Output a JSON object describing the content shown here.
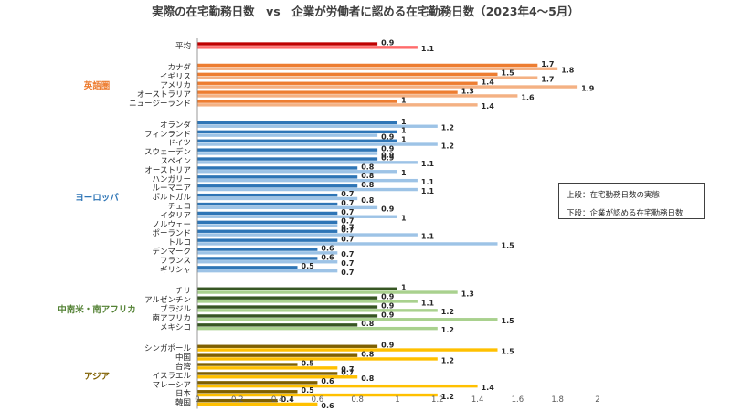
{
  "chart_data": {
    "type": "bar",
    "orientation": "horizontal",
    "title": "実際の在宅勤務日数　vs　企業が労働者に認める在宅勤務日数（2023年4～5月）",
    "xlim": [
      0,
      2
    ],
    "x_ticks": [
      "0",
      "0.2",
      "0.4",
      "0.6",
      "0.8",
      "1",
      "1.2",
      "1.4",
      "1.6",
      "1.8",
      "2"
    ],
    "grid": false,
    "legend_lines": [
      "上段：在宅勤務日数の実態",
      "下段：企業が認める在宅勤務日数"
    ],
    "series": [
      {
        "name": "上段：在宅勤務日数の実態"
      },
      {
        "name": "下段：企業が認める在宅勤務日数"
      }
    ],
    "groups": [
      {
        "label": "",
        "label_color": "#C00000",
        "actual_color": "#C00000",
        "allowed_color": "#FF6B6B",
        "items": [
          {
            "label": "平均",
            "actual": 0.9,
            "allowed": 1.1
          }
        ]
      },
      {
        "label": "英語圏",
        "label_color": "#ED7D31",
        "actual_color": "#ED7D31",
        "allowed_color": "#F4B183",
        "items": [
          {
            "label": "カナダ",
            "actual": 1.7,
            "allowed": 1.8
          },
          {
            "label": "イギリス",
            "actual": 1.5,
            "allowed": 1.7
          },
          {
            "label": "アメリカ",
            "actual": 1.4,
            "allowed": 1.9
          },
          {
            "label": "オーストラリア",
            "actual": 1.3,
            "allowed": 1.6
          },
          {
            "label": "ニュージーランド",
            "actual": 1,
            "allowed": 1.4
          }
        ]
      },
      {
        "label": "ヨーロッパ",
        "label_color": "#2E75B6",
        "actual_color": "#2E75B6",
        "allowed_color": "#9DC3E6",
        "items": [
          {
            "label": "オランダ",
            "actual": 1,
            "allowed": 1.2
          },
          {
            "label": "フィンランド",
            "actual": 1,
            "allowed": 0.9
          },
          {
            "label": "ドイツ",
            "actual": 1,
            "allowed": 1.2
          },
          {
            "label": "スウェーデン",
            "actual": 0.9,
            "allowed": 0.9
          },
          {
            "label": "スペイン",
            "actual": 0.9,
            "allowed": 1.1
          },
          {
            "label": "オーストリア",
            "actual": 0.8,
            "allowed": 1
          },
          {
            "label": "ハンガリー",
            "actual": 0.8,
            "allowed": 1.1
          },
          {
            "label": "ルーマニア",
            "actual": 0.8,
            "allowed": 1.1
          },
          {
            "label": "ポルトガル",
            "actual": 0.7,
            "allowed": 0.8
          },
          {
            "label": "チェコ",
            "actual": 0.7,
            "allowed": 0.9
          },
          {
            "label": "イタリア",
            "actual": 0.7,
            "allowed": 1
          },
          {
            "label": "ノルウェー",
            "actual": 0.7,
            "allowed": 0.7
          },
          {
            "label": "ポーランド",
            "actual": 0.7,
            "allowed": 1.1
          },
          {
            "label": "トルコ",
            "actual": 0.7,
            "allowed": 1.5
          },
          {
            "label": "デンマーク",
            "actual": 0.6,
            "allowed": 0.7
          },
          {
            "label": "フランス",
            "actual": 0.6,
            "allowed": 0.7
          },
          {
            "label": "ギリシャ",
            "actual": 0.5,
            "allowed": 0.7
          }
        ]
      },
      {
        "label": "中南米・南アフリカ",
        "label_color": "#548235",
        "actual_color": "#375623",
        "allowed_color": "#A9D18E",
        "items": [
          {
            "label": "チリ",
            "actual": 1,
            "allowed": 1.3
          },
          {
            "label": "アルゼンチン",
            "actual": 0.9,
            "allowed": 1.1
          },
          {
            "label": "ブラジル",
            "actual": 0.9,
            "allowed": 1.2
          },
          {
            "label": "南アフリカ",
            "actual": 0.9,
            "allowed": 1.5
          },
          {
            "label": "メキシコ",
            "actual": 0.8,
            "allowed": 1.2
          }
        ]
      },
      {
        "label": "アジア",
        "label_color": "#7F6000",
        "actual_color": "#7F6000",
        "allowed_color": "#FFC000",
        "items": [
          {
            "label": "シンガポール",
            "actual": 0.9,
            "allowed": 1.5
          },
          {
            "label": "中国",
            "actual": 0.8,
            "allowed": 1.2
          },
          {
            "label": "台湾",
            "actual": 0.5,
            "allowed": 0.7
          },
          {
            "label": "イスラエル",
            "actual": 0.7,
            "allowed": 0.8
          },
          {
            "label": "マレーシア",
            "actual": 0.6,
            "allowed": 1.4
          },
          {
            "label": "日本",
            "actual": 0.5,
            "allowed": 1.2
          },
          {
            "label": "韓国",
            "actual": 0.4,
            "allowed": 0.6
          }
        ]
      }
    ]
  }
}
